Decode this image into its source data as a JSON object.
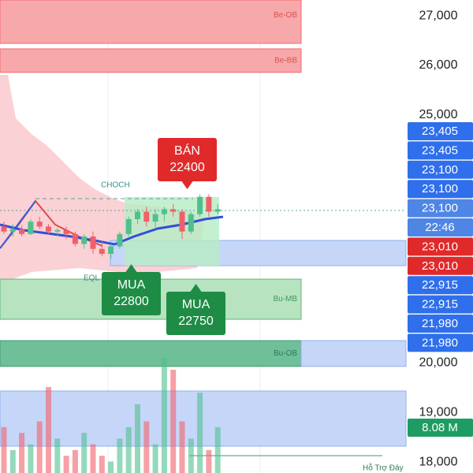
{
  "chart_data": {
    "type": "candlestick",
    "ylim": [
      17780,
      27320
    ],
    "yticks": [
      {
        "value": 27000,
        "label": "27,000"
      },
      {
        "value": 26000,
        "label": "26,000"
      },
      {
        "value": 25000,
        "label": "25,000"
      },
      {
        "value": 20000,
        "label": "20,000"
      },
      {
        "value": 19000,
        "label": "19,000"
      },
      {
        "value": 18000,
        "label": "18,000"
      }
    ],
    "up_color": "#4fc08d",
    "down_color": "#f0606a",
    "candles": [
      {
        "open": 22750,
        "high": 22850,
        "low": 22600,
        "close": 22650
      },
      {
        "open": 22650,
        "high": 22800,
        "low": 22550,
        "close": 22700
      },
      {
        "open": 22700,
        "high": 22780,
        "low": 22550,
        "close": 22600
      },
      {
        "open": 22600,
        "high": 22900,
        "low": 22580,
        "close": 22850
      },
      {
        "open": 22850,
        "high": 22950,
        "low": 22700,
        "close": 22750
      },
      {
        "open": 22750,
        "high": 22800,
        "low": 22600,
        "close": 22650
      },
      {
        "open": 22650,
        "high": 22720,
        "low": 22550,
        "close": 22680
      },
      {
        "open": 22680,
        "high": 22750,
        "low": 22500,
        "close": 22600
      },
      {
        "open": 22600,
        "high": 22650,
        "low": 22350,
        "close": 22400
      },
      {
        "open": 22400,
        "high": 22600,
        "low": 22300,
        "close": 22550
      },
      {
        "open": 22550,
        "high": 22650,
        "low": 22200,
        "close": 22300
      },
      {
        "open": 22300,
        "high": 22450,
        "low": 22150,
        "close": 22200
      },
      {
        "open": 22200,
        "high": 22400,
        "low": 22100,
        "close": 22350
      },
      {
        "open": 22350,
        "high": 22650,
        "low": 22300,
        "close": 22600
      },
      {
        "open": 22600,
        "high": 22950,
        "low": 22550,
        "close": 22900
      },
      {
        "open": 22900,
        "high": 23100,
        "low": 22800,
        "close": 23050
      },
      {
        "open": 23050,
        "high": 23150,
        "low": 22750,
        "close": 22850
      },
      {
        "open": 22850,
        "high": 23100,
        "low": 22700,
        "close": 23000
      },
      {
        "open": 23000,
        "high": 23150,
        "low": 22850,
        "close": 23100
      },
      {
        "open": 23100,
        "high": 23200,
        "low": 22950,
        "close": 23050
      },
      {
        "open": 23050,
        "high": 23100,
        "low": 22500,
        "close": 22650
      },
      {
        "open": 22650,
        "high": 23050,
        "low": 22600,
        "close": 23000
      },
      {
        "open": 23000,
        "high": 23400,
        "low": 22950,
        "close": 23350
      },
      {
        "open": 23350,
        "high": 23400,
        "low": 22950,
        "close": 23050
      },
      {
        "open": 23050,
        "high": 23200,
        "low": 23000,
        "close": 23100
      }
    ],
    "volume_ylim": [
      0,
      22
    ],
    "volumes": [
      8,
      4,
      7,
      5,
      9,
      15,
      6,
      3,
      4,
      7,
      5,
      3,
      2,
      6,
      8,
      12,
      9,
      5,
      20,
      18,
      9,
      6,
      14,
      4,
      8
    ],
    "zones": [
      {
        "label": "Be-OB",
        "top": 27320,
        "bottom": 26445,
        "fill": "#f7a8aa",
        "stroke": "#f06a70",
        "text": "#d9534f"
      },
      {
        "label": "Be-BB",
        "top": 26335,
        "bottom": 25860,
        "fill": "#f7a8aa",
        "stroke": "#f06a70",
        "text": "#d9534f"
      },
      {
        "label": "Bu-MB",
        "top": 21690,
        "bottom": 20880,
        "fill": "#b7e3c0",
        "stroke": "#5cb873",
        "text": "#3f9a5a"
      },
      {
        "label": "Bu-OB",
        "top": 20450,
        "bottom": 19930,
        "fill": "#6fbf98",
        "stroke": "#3f9a75",
        "text": "#2f7a5a"
      }
    ],
    "annotations": {
      "choch": "CHOCH",
      "eql": "EQL",
      "support": "Hỗ Trợ Đáy"
    },
    "signals": [
      {
        "side": "BÁN",
        "price": "22400",
        "color": "#e02a2a"
      },
      {
        "side": "MUA",
        "price": "22800",
        "color": "#1e8c45"
      },
      {
        "side": "MUA",
        "price": "22750",
        "color": "#1e8c45"
      }
    ],
    "price_tags": [
      {
        "label": "23,405",
        "color": "#2f6fec"
      },
      {
        "label": "23,405",
        "color": "#2f6fec"
      },
      {
        "label": "23,100",
        "color": "#2f6fec"
      },
      {
        "label": "23,100",
        "color": "#2f6fec"
      },
      {
        "label": "23,100",
        "color": "#4f86e6"
      },
      {
        "label": "22:46",
        "color": "#4f86e6"
      },
      {
        "label": "23,010",
        "color": "#e02a2a"
      },
      {
        "label": "23,010",
        "color": "#e02a2a"
      },
      {
        "label": "22,915",
        "color": "#2f6fec"
      },
      {
        "label": "22,915",
        "color": "#2f6fec"
      },
      {
        "label": "21,980",
        "color": "#2f6fec"
      },
      {
        "label": "21,980",
        "color": "#2f6fec"
      }
    ],
    "volume_tag": {
      "label": "8.08 M",
      "color": "#1f9c63"
    }
  }
}
